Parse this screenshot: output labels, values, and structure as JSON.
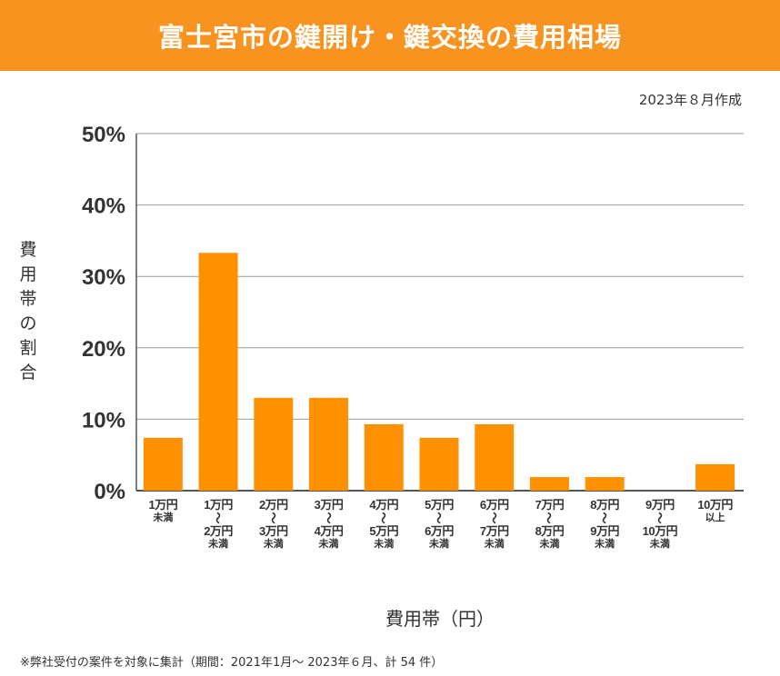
{
  "header": {
    "title": "富士宮市の鍵開け・鍵交換の費用相場"
  },
  "date_note": "2023年８月作成",
  "footnote": "※弊社受付の案件を対象に集計（期間：2021年1月～ 2023年６月、計 54 件）",
  "chart_data": {
    "type": "bar",
    "ylabel": "費用帯の割合",
    "xlabel": "費用帯（円）",
    "ylim": [
      0,
      50
    ],
    "yticks": [
      "0%",
      "10%",
      "20%",
      "30%",
      "40%",
      "50%"
    ],
    "grid": true,
    "bar_color": "#ff9000",
    "categories": [
      {
        "lines": [
          "1万円",
          "未満"
        ]
      },
      {
        "lines": [
          "1万円",
          "〜",
          "2万円",
          "未満"
        ]
      },
      {
        "lines": [
          "2万円",
          "〜",
          "3万円",
          "未満"
        ]
      },
      {
        "lines": [
          "3万円",
          "〜",
          "4万円",
          "未満"
        ]
      },
      {
        "lines": [
          "4万円",
          "〜",
          "5万円",
          "未満"
        ]
      },
      {
        "lines": [
          "5万円",
          "〜",
          "6万円",
          "未満"
        ]
      },
      {
        "lines": [
          "6万円",
          "〜",
          "7万円",
          "未満"
        ]
      },
      {
        "lines": [
          "7万円",
          "〜",
          "8万円",
          "未満"
        ]
      },
      {
        "lines": [
          "8万円",
          "〜",
          "9万円",
          "未満"
        ]
      },
      {
        "lines": [
          "9万円",
          "〜",
          "10万円",
          "未満"
        ]
      },
      {
        "lines": [
          "10万円",
          "以上"
        ]
      }
    ],
    "values": [
      7.4,
      33.3,
      13.0,
      13.0,
      9.3,
      7.4,
      9.3,
      1.9,
      1.9,
      0,
      3.7
    ]
  }
}
